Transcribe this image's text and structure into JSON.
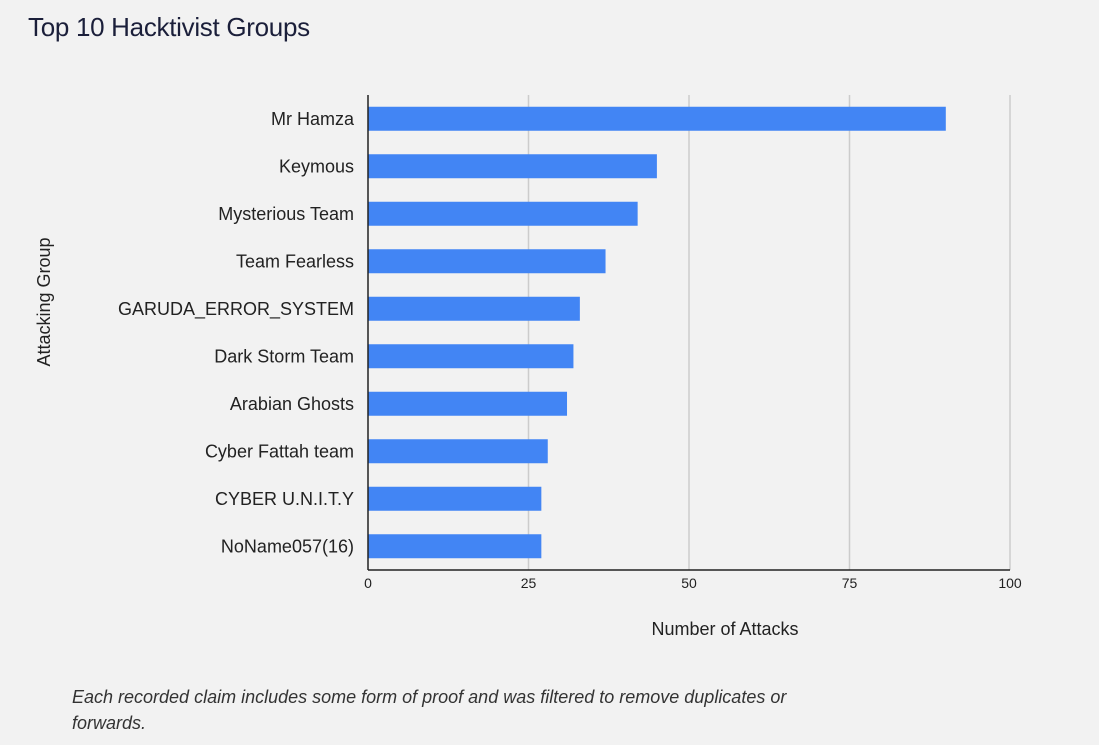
{
  "chart_data": {
    "type": "bar",
    "orientation": "horizontal",
    "title": "Top 10 Hacktivist Groups",
    "xlabel": "Number of Attacks",
    "ylabel": "Attacking Group",
    "categories": [
      "Mr Hamza",
      "Keymous",
      "Mysterious Team",
      "Team Fearless",
      "GARUDA_ERROR_SYSTEM",
      "Dark Storm Team",
      "Arabian Ghosts",
      "Cyber Fattah team",
      "CYBER U.N.I.T.Y",
      "NoName057(16)"
    ],
    "values": [
      90,
      45,
      42,
      37,
      33,
      32,
      31,
      28,
      27,
      27
    ],
    "xlim": [
      0,
      100
    ],
    "xticks": [
      0,
      25,
      50,
      75,
      100
    ],
    "grid": true,
    "legend": "none",
    "bar_color": "#4285f4",
    "grid_color": "#cccccc",
    "axis_color": "#222222"
  },
  "footnote": "Each recorded claim includes some form of proof and was filtered to remove duplicates or forwards."
}
